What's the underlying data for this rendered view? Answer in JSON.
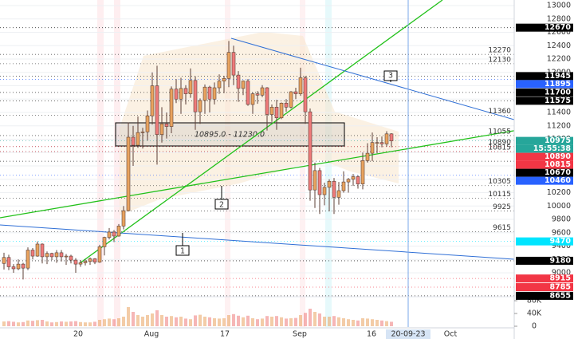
{
  "chart_data": {
    "type": "candlestick",
    "open": [
      9140,
      9230,
      9090,
      9060,
      9130,
      9070,
      9340,
      9250,
      9430,
      9240,
      9290,
      9240,
      9300,
      9240,
      9250,
      9190,
      9130,
      9150,
      9170,
      9210,
      9160,
      9390,
      9530,
      9610,
      9550,
      9700,
      9930,
      11030,
      10910,
      11100,
      11110,
      11350,
      11800,
      11070,
      11230,
      11190,
      11750,
      11600,
      11760,
      11680,
      11880,
      11410,
      11580,
      11780,
      11600,
      11770,
      11870,
      11910,
      12300,
      11960,
      11760,
      11870,
      11520,
      11680,
      11660,
      11770,
      11370,
      11480,
      11320,
      11540,
      11480,
      11710,
      11680,
      11920,
      11410,
      10240,
      10530,
      10170,
      10280,
      10370,
      10130,
      10230,
      10360,
      10400,
      10440,
      10330,
      10680,
      10790,
      10950,
      10950,
      10930,
      11080
    ],
    "high": [
      9300,
      9270,
      9130,
      9200,
      9150,
      9380,
      9370,
      9470,
      9440,
      9320,
      9300,
      9340,
      9340,
      9280,
      9270,
      9220,
      9190,
      9200,
      9230,
      9220,
      9420,
      9540,
      9670,
      9640,
      9730,
      10000,
      11250,
      11200,
      11340,
      11170,
      11430,
      12000,
      12100,
      11480,
      11400,
      11790,
      11900,
      11920,
      11810,
      12060,
      11940,
      11610,
      11820,
      11800,
      11850,
      11970,
      11950,
      12470,
      12400,
      12020,
      11880,
      11900,
      11700,
      11720,
      11810,
      11780,
      11520,
      11590,
      11550,
      11600,
      11720,
      11770,
      12070,
      11950,
      11460,
      10650,
      10570,
      10350,
      10400,
      10420,
      10360,
      10520,
      10420,
      10480,
      10460,
      10800,
      10940,
      11100,
      11030,
      11040,
      11120,
      11090
    ],
    "low": [
      9050,
      9040,
      9000,
      9040,
      8900,
      9040,
      9200,
      9240,
      9140,
      9130,
      9190,
      9150,
      9170,
      9120,
      9140,
      9000,
      9090,
      9110,
      9120,
      9130,
      9150,
      9260,
      9500,
      9460,
      9540,
      9650,
      9920,
      10600,
      10870,
      10860,
      10980,
      11220,
      10620,
      10950,
      11010,
      11090,
      11540,
      11380,
      11520,
      11620,
      11140,
      11230,
      11380,
      11400,
      11520,
      11680,
      11690,
      11780,
      11810,
      11560,
      11660,
      11500,
      11380,
      11530,
      11630,
      11130,
      11260,
      11140,
      11300,
      11410,
      11460,
      11600,
      11650,
      11230,
      10080,
      9970,
      9880,
      10010,
      9920,
      9880,
      10020,
      10200,
      10200,
      10300,
      10260,
      10250,
      10650,
      10670,
      10790,
      10880,
      10890,
      10880
    ],
    "close": [
      9230,
      9090,
      9060,
      9130,
      9070,
      9340,
      9250,
      9430,
      9240,
      9290,
      9240,
      9300,
      9240,
      9250,
      9190,
      9130,
      9150,
      9170,
      9210,
      9160,
      9390,
      9530,
      9610,
      9550,
      9700,
      9930,
      11030,
      10910,
      11100,
      11110,
      11350,
      11800,
      11070,
      11230,
      11190,
      11750,
      11600,
      11760,
      11680,
      11880,
      11410,
      11580,
      11780,
      11600,
      11770,
      11870,
      11910,
      12300,
      11960,
      11760,
      11870,
      11520,
      11680,
      11660,
      11770,
      11370,
      11480,
      11320,
      11540,
      11480,
      11710,
      11680,
      11920,
      11410,
      10240,
      10530,
      10170,
      10280,
      10370,
      10130,
      10230,
      10360,
      10400,
      10440,
      10330,
      10680,
      10790,
      10950,
      10950,
      10930,
      11080,
      10975
    ],
    "volume": [
      15000,
      16000,
      14000,
      12000,
      13000,
      18000,
      17000,
      19000,
      20000,
      15000,
      12000,
      13000,
      15000,
      14000,
      15000,
      16000,
      13000,
      12000,
      12000,
      14000,
      20000,
      22000,
      24000,
      22000,
      25000,
      30000,
      60000,
      45000,
      35000,
      30000,
      35000,
      40000,
      50000,
      35000,
      30000,
      32000,
      28000,
      30000,
      24000,
      22000,
      34000,
      36000,
      30000,
      28000,
      25000,
      24000,
      25000,
      35000,
      38000,
      33000,
      28000,
      33000,
      25000,
      22000,
      24000,
      32000,
      30000,
      32000,
      28000,
      24000,
      25000,
      26000,
      35000,
      42000,
      55000,
      45000,
      40000,
      30000,
      30000,
      32000,
      28000,
      25000,
      22000,
      20000,
      18000,
      25000,
      24000,
      22000,
      20000,
      18000,
      16000,
      14000
    ],
    "up_color": "#e9a35e",
    "down_color": "#ef7a7a",
    "ylim": [
      8606,
      13084
    ],
    "yticks": [
      9000,
      9200,
      9400,
      9600,
      9800,
      10000,
      10200,
      10400,
      10600,
      10800,
      11000,
      11200,
      11400,
      11600,
      11800,
      12000,
      12200,
      12400,
      12600,
      12800,
      13000
    ],
    "volume_ylim": [
      0,
      85000
    ],
    "volume_ticks": [
      {
        "value": 0,
        "label": "0"
      },
      {
        "value": 40000,
        "label": "40K"
      },
      {
        "value": 80000,
        "label": "80K"
      }
    ],
    "grid": true,
    "levels": [
      {
        "value": 12670,
        "color": "#000000",
        "boxed": true
      },
      {
        "value": 12270,
        "color": "#333333",
        "boxed": false
      },
      {
        "value": 12130,
        "color": "#333333",
        "boxed": false
      },
      {
        "value": 11945,
        "color": "#000000",
        "boxed": true
      },
      {
        "value": 11895,
        "color": "#2962ff",
        "boxed": true
      },
      {
        "value": 11700,
        "color": "#000000",
        "boxed": true
      },
      {
        "value": 11575,
        "color": "#000000",
        "boxed": true
      },
      {
        "value": 11360,
        "color": "#333333",
        "boxed": false
      },
      {
        "value": 11055,
        "color": "#333333",
        "boxed": false
      },
      {
        "value": 10975,
        "color": "#26a69a",
        "boxed": true
      },
      {
        "value": 10890,
        "color": "#333333",
        "boxed": false
      },
      {
        "value": 10890,
        "color": "#f23645",
        "boxed": true
      },
      {
        "value": 10815,
        "color": "#333333",
        "boxed": false
      },
      {
        "value": 10815,
        "color": "#f23645",
        "boxed": true
      },
      {
        "value": 10670,
        "color": "#000000",
        "boxed": true
      },
      {
        "value": 10460,
        "color": "#2962ff",
        "boxed": true
      },
      {
        "value": 10305,
        "color": "#333333",
        "boxed": false
      },
      {
        "value": 10115,
        "color": "#333333",
        "boxed": false
      },
      {
        "value": 9925,
        "color": "#333333",
        "boxed": false
      },
      {
        "value": 9615,
        "color": "#333333",
        "boxed": false
      },
      {
        "value": 9470,
        "color": "#00e5ff",
        "boxed": true
      },
      {
        "value": 9180,
        "color": "#000000",
        "boxed": true
      },
      {
        "value": 8915,
        "color": "#f23645",
        "boxed": true
      },
      {
        "value": 8785,
        "color": "#f23645",
        "boxed": true
      },
      {
        "value": 8655,
        "color": "#000000",
        "boxed": true
      }
    ],
    "countdown": "15:55:38",
    "x_labels": [
      "20",
      "Aug",
      "17",
      "Sep",
      "16",
      "Oct"
    ],
    "cursor_label": "20-09-23",
    "annotations": [
      "10895.0 - 11230.0",
      "1",
      "2",
      "3"
    ]
  }
}
